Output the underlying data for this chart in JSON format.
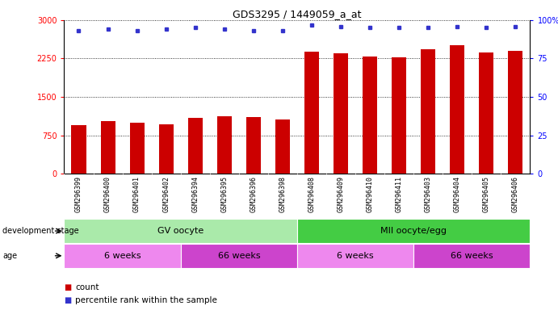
{
  "title": "GDS3295 / 1449059_a_at",
  "samples": [
    "GSM296399",
    "GSM296400",
    "GSM296401",
    "GSM296402",
    "GSM296394",
    "GSM296395",
    "GSM296396",
    "GSM296398",
    "GSM296408",
    "GSM296409",
    "GSM296410",
    "GSM296411",
    "GSM296403",
    "GSM296404",
    "GSM296405",
    "GSM296406"
  ],
  "counts": [
    955,
    1025,
    990,
    965,
    1085,
    1125,
    1105,
    1055,
    2385,
    2345,
    2285,
    2270,
    2435,
    2505,
    2365,
    2405
  ],
  "percentile_ranks": [
    93,
    94,
    93,
    94,
    95,
    94,
    93,
    93,
    97,
    96,
    95,
    95,
    95,
    96,
    95,
    96
  ],
  "ylim_left": [
    0,
    3000
  ],
  "ylim_right": [
    0,
    100
  ],
  "yticks_left": [
    0,
    750,
    1500,
    2250,
    3000
  ],
  "yticks_right": [
    0,
    25,
    50,
    75,
    100
  ],
  "bar_color": "#cc0000",
  "dot_color": "#3333cc",
  "dev_stage_groups": [
    {
      "label": "GV oocyte",
      "start": 0,
      "end": 8,
      "color": "#aaeaaa"
    },
    {
      "label": "MII oocyte/egg",
      "start": 8,
      "end": 16,
      "color": "#44cc44"
    }
  ],
  "age_groups": [
    {
      "label": "6 weeks",
      "start": 0,
      "end": 4,
      "color": "#ee88ee"
    },
    {
      "label": "66 weeks",
      "start": 4,
      "end": 8,
      "color": "#cc44cc"
    },
    {
      "label": "6 weeks",
      "start": 8,
      "end": 12,
      "color": "#ee88ee"
    },
    {
      "label": "66 weeks",
      "start": 12,
      "end": 16,
      "color": "#cc44cc"
    }
  ],
  "dev_stage_label": "development stage",
  "age_label": "age",
  "legend_count_label": "count",
  "legend_pct_label": "percentile rank within the sample",
  "background_color": "#ffffff",
  "plot_bg_color": "#ffffff",
  "xtick_bg_color": "#cccccc"
}
